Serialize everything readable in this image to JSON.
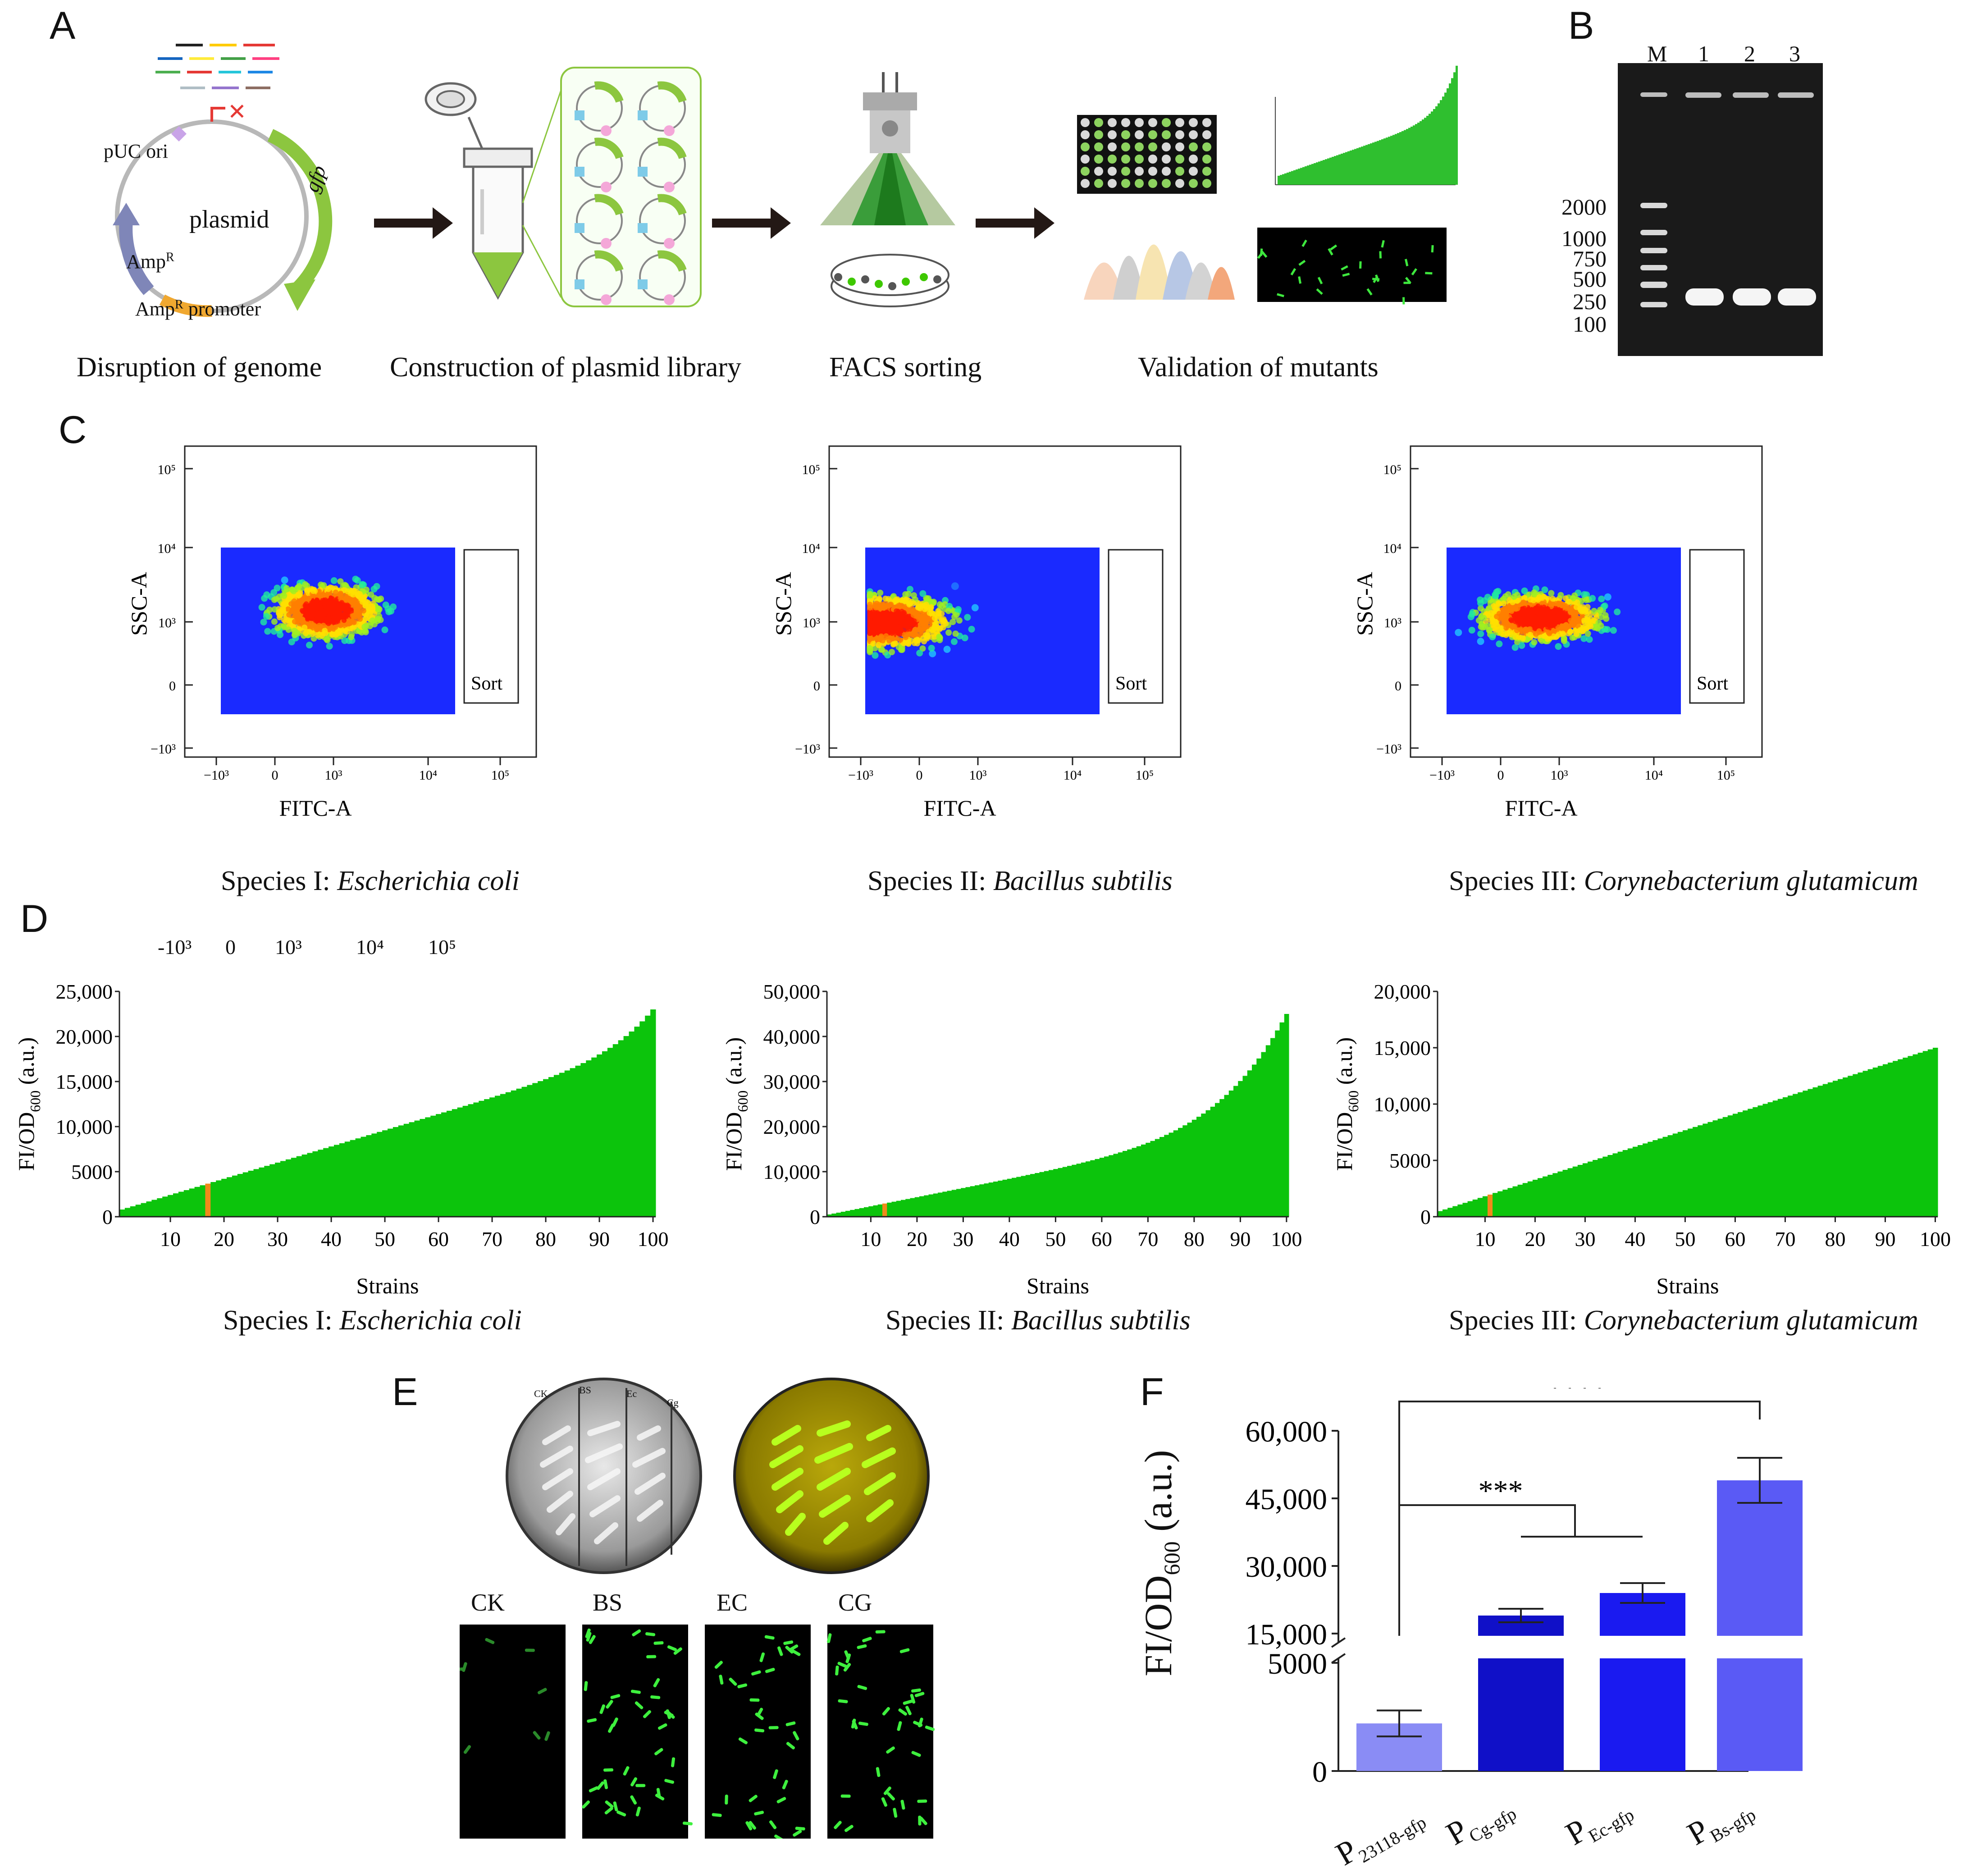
{
  "panels": {
    "A": "A",
    "B": "B",
    "C": "C",
    "D": "D",
    "E": "E",
    "F": "F"
  },
  "panel_a": {
    "plasmid_label": "plasmid",
    "gfp_label": "gfp",
    "puc_label": "pUC ori",
    "amp_label": "Amp",
    "amp_sup": "R",
    "amp_promoter_label": "Amp",
    "amp_promoter_sup": "R",
    "amp_promoter_suffix": " promoter",
    "steps": [
      "Disruption of genome",
      "Construction of plasmid library",
      "FACS sorting",
      "Validation of mutants"
    ],
    "colors": {
      "green": "#8cc63f",
      "gfp_green": "#3ec800",
      "pink": "#f4a7d8",
      "blue": "#7ecbe8",
      "arrow": "#231815"
    }
  },
  "panel_b": {
    "lanes": [
      "M",
      "1",
      "2",
      "3"
    ],
    "ladder": [
      "2000",
      "1000",
      "750",
      "500",
      "250",
      "100"
    ]
  },
  "panel_c": {
    "plots": [
      {
        "y_label": "SSC-A",
        "x_label": "FITC-A",
        "gate": "Sort",
        "caption_prefix": "Species I: ",
        "caption_species": "Escherichia coli"
      },
      {
        "y_label": "SSC-A",
        "x_label": "FITC-A",
        "gate": "Sort",
        "caption_prefix": "Species II: ",
        "caption_species": "Bacillus subtilis"
      },
      {
        "y_label": "SSC-A",
        "x_label": "FITC-A",
        "gate": "Sort",
        "caption_prefix": "Species III: ",
        "caption_species": "Corynebacterium glutamicum"
      }
    ],
    "y_ticks": [
      "10⁵",
      "10⁴",
      "10³",
      "0",
      "−10³"
    ],
    "x_ticks": [
      "−10³",
      "0",
      "10³",
      "10⁴",
      "10⁵"
    ],
    "stray_ticks": [
      "-10³",
      "0",
      "10³",
      "10⁴",
      "10⁵"
    ]
  },
  "chart_data": [
    {
      "type": "bar",
      "title": "Species I: Escherichia coli",
      "xlabel": "Strains",
      "ylabel": "FI/OD600 (a.u.)",
      "ylim": [
        0,
        25000
      ],
      "yticks": [
        "0",
        "5000",
        "10,000",
        "15,000",
        "20,000",
        "25,000"
      ],
      "xticks": [
        "10",
        "20",
        "30",
        "40",
        "50",
        "60",
        "70",
        "80",
        "90",
        "100"
      ],
      "n": 100,
      "start": 800,
      "end": 23000,
      "highlight_index": 17,
      "shape": "linear_tail"
    },
    {
      "type": "bar",
      "title": "Species II: Bacillus subtilis",
      "xlabel": "Strains",
      "ylabel": "FI/OD600 (a.u.)",
      "ylim": [
        0,
        50000
      ],
      "yticks": [
        "0",
        "10,000",
        "20,000",
        "30,000",
        "40,000",
        "50,000"
      ],
      "xticks": [
        "10",
        "20",
        "30",
        "40",
        "50",
        "60",
        "70",
        "80",
        "90",
        "100"
      ],
      "n": 100,
      "start": 500,
      "end": 45000,
      "highlight_index": 13,
      "shape": "exp_tail"
    },
    {
      "type": "bar",
      "title": "Species III: Corynebacterium glutamicum",
      "xlabel": "Strains",
      "ylabel": "FI/OD600 (a.u.)",
      "ylim": [
        0,
        20000
      ],
      "yticks": [
        "0",
        "5000",
        "10,000",
        "15,000",
        "20,000"
      ],
      "xticks": [
        "10",
        "20",
        "30",
        "40",
        "50",
        "60",
        "70",
        "80",
        "90",
        "100"
      ],
      "n": 100,
      "start": 500,
      "end": 15000,
      "highlight_index": 11,
      "shape": "linear"
    },
    {
      "type": "bar",
      "title": "",
      "xlabel": "",
      "ylabel": "FI/OD600 (a.u.)",
      "categories": [
        "P23118-gfp",
        "PCg-gfp",
        "PEc-gfp",
        "PBs-gfp"
      ],
      "values": [
        2200,
        19000,
        24000,
        49000
      ],
      "errors": [
        600,
        1500,
        2200,
        5000
      ],
      "yticks": [
        "0",
        "5000",
        "15,000",
        "30,000",
        "45,000",
        "60,000"
      ],
      "significance": [
        "****",
        "***"
      ],
      "colors": [
        "#8a8cf5",
        "#1010c8",
        "#1a1af0",
        "#5a5af5"
      ]
    }
  ],
  "panel_d": {
    "x_label": "Strains",
    "captions": [
      {
        "prefix": "Species I: ",
        "species": "Escherichia coli"
      },
      {
        "prefix": "Species II: ",
        "species": "Bacillus subtilis"
      },
      {
        "prefix": "Species III: ",
        "species": "Corynebacterium glutamicum"
      }
    ],
    "bar_color": "#0cc40c",
    "highlight_color": "#f08a1a"
  },
  "panel_e": {
    "plate_labels": [
      "CK",
      "BS",
      "Ec",
      "Cg"
    ],
    "micro_labels": [
      "CK",
      "BS",
      "EC",
      "CG"
    ]
  },
  "panel_f": {
    "ylabel_main": "FI/OD",
    "ylabel_sub": "600",
    "ylabel_unit": " (a.u.)",
    "cat_main": [
      "P",
      "P",
      "P",
      "P"
    ],
    "cat_sub": [
      "23118-gfp",
      "Cg-gfp",
      "Ec-gfp",
      "Bs-gfp"
    ]
  }
}
